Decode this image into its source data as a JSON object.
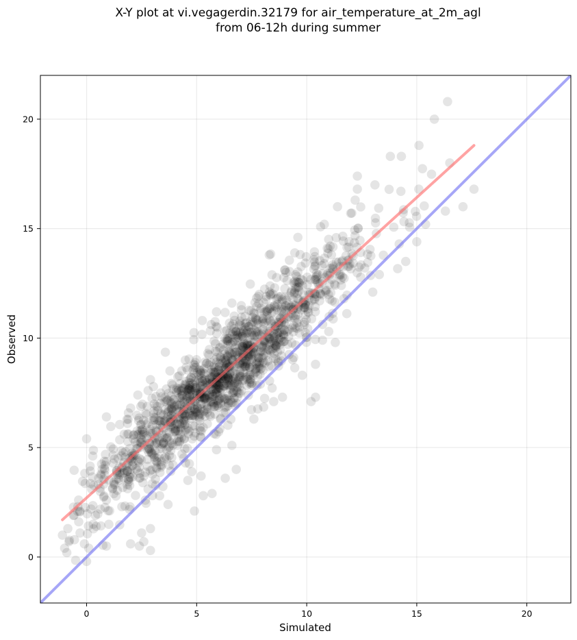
{
  "chart_data": {
    "type": "scatter",
    "title": "X-Y plot at vi.vegagerdin.32179 for air_temperature_at_2m_agl\nfrom 06-12h during summer",
    "xlabel": "Simulated",
    "ylabel": "Observed",
    "xlim": [
      -2.1,
      22
    ],
    "ylim": [
      -2.1,
      22
    ],
    "xticks": [
      0,
      5,
      10,
      15,
      20
    ],
    "yticks": [
      0,
      5,
      10,
      15,
      20
    ],
    "grid": true,
    "point_color": "#000000",
    "point_alpha": 0.1,
    "regression_line": {
      "color": "#ff6666",
      "x": [
        -1.1,
        17.6
      ],
      "y": [
        1.7,
        18.8
      ]
    },
    "identity_line": {
      "color": "#6a6af2",
      "x": [
        -2.1,
        22
      ],
      "y": [
        -2.1,
        22
      ]
    },
    "highlighted_points": [
      {
        "x": 16.4,
        "y": 20.8
      },
      {
        "x": 15.8,
        "y": 20.0
      },
      {
        "x": 15.1,
        "y": 18.8
      },
      {
        "x": 14.3,
        "y": 18.3
      },
      {
        "x": 13.8,
        "y": 18.3
      },
      {
        "x": 16.5,
        "y": 18.0
      },
      {
        "x": 17.6,
        "y": 16.8
      },
      {
        "x": 17.1,
        "y": 16.0
      },
      {
        "x": 16.3,
        "y": 15.8
      },
      {
        "x": 15.4,
        "y": 15.2
      },
      {
        "x": 15.0,
        "y": 14.4
      },
      {
        "x": 13.1,
        "y": 17.0
      },
      {
        "x": 12.3,
        "y": 16.8
      },
      {
        "x": 12.2,
        "y": 16.3
      },
      {
        "x": 12.3,
        "y": 17.4
      },
      {
        "x": 13.3,
        "y": 12.9
      },
      {
        "x": 13.0,
        "y": 12.1
      },
      {
        "x": 11.3,
        "y": 9.8
      },
      {
        "x": 11.0,
        "y": 10.3
      },
      {
        "x": 10.4,
        "y": 8.8
      },
      {
        "x": 10.4,
        "y": 7.3
      },
      {
        "x": 10.2,
        "y": 7.1
      },
      {
        "x": 9.8,
        "y": 8.3
      },
      {
        "x": 8.9,
        "y": 7.3
      },
      {
        "x": 8.5,
        "y": 7.1
      },
      {
        "x": 7.6,
        "y": 6.3
      },
      {
        "x": 6.6,
        "y": 5.1
      },
      {
        "x": 6.8,
        "y": 4.0
      },
      {
        "x": 6.3,
        "y": 3.6
      },
      {
        "x": 5.9,
        "y": 4.9
      },
      {
        "x": 5.7,
        "y": 2.9
      },
      {
        "x": 5.3,
        "y": 2.8
      },
      {
        "x": 4.9,
        "y": 2.1
      },
      {
        "x": 5.2,
        "y": 3.7
      },
      {
        "x": 4.6,
        "y": 3.5
      },
      {
        "x": 3.7,
        "y": 2.4
      },
      {
        "x": 2.9,
        "y": 1.3
      },
      {
        "x": 2.9,
        "y": 0.3
      },
      {
        "x": 2.6,
        "y": 0.7
      },
      {
        "x": 2.5,
        "y": 1.1
      },
      {
        "x": 2.4,
        "y": 0.5
      },
      {
        "x": 2.0,
        "y": 0.6
      },
      {
        "x": 0.9,
        "y": 0.5
      },
      {
        "x": 0.1,
        "y": 0.4
      },
      {
        "x": 0.0,
        "y": -0.2
      },
      {
        "x": -0.3,
        "y": 1.1
      },
      {
        "x": -0.8,
        "y": 0.7
      },
      {
        "x": -1.1,
        "y": 1.0
      },
      {
        "x": -1.0,
        "y": 0.4
      },
      {
        "x": -0.9,
        "y": 0.2
      },
      {
        "x": -0.1,
        "y": 0.6
      },
      {
        "x": -0.6,
        "y": 1.9
      },
      {
        "x": -0.4,
        "y": 2.3
      },
      {
        "x": 0.4,
        "y": 1.9
      },
      {
        "x": 0.9,
        "y": 2.6
      },
      {
        "x": 1.6,
        "y": 2.3
      },
      {
        "x": 0.0,
        "y": 5.4
      },
      {
        "x": 0.9,
        "y": 6.4
      },
      {
        "x": 2.0,
        "y": 6.8
      },
      {
        "x": 2.9,
        "y": 8.1
      },
      {
        "x": 5.9,
        "y": 11.2
      },
      {
        "x": 6.6,
        "y": 11.6
      },
      {
        "x": 8.3,
        "y": 13.8
      },
      {
        "x": 9.6,
        "y": 14.6
      },
      {
        "x": 10.8,
        "y": 15.2
      },
      {
        "x": 11.4,
        "y": 16.0
      },
      {
        "x": 12.0,
        "y": 15.7
      },
      {
        "x": 14.5,
        "y": 13.5
      },
      {
        "x": 14.2,
        "y": 14.3
      }
    ]
  }
}
